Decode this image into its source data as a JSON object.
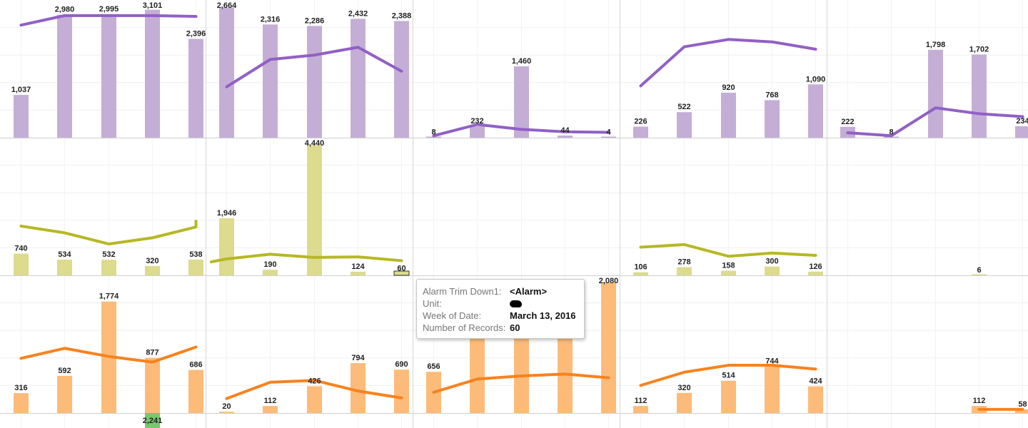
{
  "chart_data": {
    "type": "bar",
    "layout": "3x5 small multiples, bars with line overlay",
    "grid": true,
    "colors": {
      "purple_bar": "#c4aed6",
      "purple_line": "#9160c4",
      "olive_bar": "#dcdb8e",
      "olive_line": "#b6b824",
      "orange_bar": "#fdbb79",
      "orange_line": "#f8821e",
      "highlight_bar": "#78c86e"
    },
    "panels": [
      {
        "row": 0,
        "col": 0,
        "color": "purple",
        "ylim": [
          0,
          3200
        ],
        "bars": [
          {
            "v": 1037,
            "l": "1,037"
          },
          {
            "v": 2980,
            "l": "2,980"
          },
          {
            "v": 2995,
            "l": "2,995"
          },
          {
            "v": 3101,
            "l": "3,101"
          },
          {
            "v": 2396,
            "l": "2,396"
          }
        ],
        "line": [
          2730,
          2960,
          2960,
          2960,
          2940
        ]
      },
      {
        "row": 0,
        "col": 1,
        "color": "purple",
        "ylim": [
          0,
          2700
        ],
        "bars": [
          {
            "v": 2664,
            "l": "2,664"
          },
          {
            "v": 2316,
            "l": "2,316"
          },
          {
            "v": 2286,
            "l": "2,286"
          },
          {
            "v": 2432,
            "l": "2,432"
          },
          {
            "v": 2388,
            "l": "2,388"
          }
        ],
        "line": [
          1040,
          1600,
          1690,
          1850,
          1360
        ]
      },
      {
        "row": 0,
        "col": 2,
        "color": "purple",
        "ylim": [
          0,
          2700
        ],
        "bars": [
          {
            "v": 8,
            "l": "8"
          },
          {
            "v": 232,
            "l": "232"
          },
          {
            "v": 1460,
            "l": "1,460"
          },
          {
            "v": 44,
            "l": "44"
          },
          {
            "v": 4,
            "l": "4"
          }
        ],
        "line": [
          40,
          270,
          170,
          120,
          110
        ]
      },
      {
        "row": 0,
        "col": 3,
        "color": "purple",
        "ylim": [
          0,
          2700
        ],
        "bars": [
          {
            "v": 226,
            "l": "226"
          },
          {
            "v": 522,
            "l": "522"
          },
          {
            "v": 920,
            "l": "920"
          },
          {
            "v": 768,
            "l": "768"
          },
          {
            "v": 1090,
            "l": "1,090"
          }
        ],
        "line": [
          1060,
          1860,
          2010,
          1960,
          1810
        ]
      },
      {
        "row": 0,
        "col": 4,
        "color": "purple",
        "ylim": [
          0,
          2700
        ],
        "bars": [
          {
            "v": 222,
            "l": "222"
          },
          {
            "v": 8,
            "l": "8"
          },
          {
            "v": 1798,
            "l": "1,798"
          },
          {
            "v": 1702,
            "l": "1,702"
          },
          {
            "v": 234,
            "l": "234"
          }
        ],
        "line": [
          100,
          40,
          610,
          490,
          430
        ]
      },
      {
        "row": 1,
        "col": 0,
        "color": "olive",
        "ylim": [
          0,
          4500
        ],
        "bars": [
          {
            "v": 740,
            "l": "740"
          },
          {
            "v": 534,
            "l": "534"
          },
          {
            "v": 532,
            "l": "532"
          },
          {
            "v": 320,
            "l": "320"
          },
          {
            "v": 538,
            "l": "538"
          }
        ],
        "line": [
          1680,
          1450,
          1070,
          1280,
          1650
        ],
        "line_end": 1850
      },
      {
        "row": 1,
        "col": 1,
        "color": "olive",
        "ylim": [
          0,
          4500
        ],
        "bars": [
          {
            "v": 1946,
            "l": "1,946"
          },
          {
            "v": 190,
            "l": "190"
          },
          {
            "v": 4440,
            "l": "4,440"
          },
          {
            "v": 124,
            "l": "124"
          },
          {
            "v": 60,
            "l": "60",
            "outline": true
          }
        ],
        "line": [
          560,
          720,
          610,
          630,
          500
        ],
        "line_start": 460
      },
      {
        "row": 1,
        "col": 2,
        "color": "olive",
        "ylim": [
          0,
          4500
        ],
        "bars": [],
        "line": []
      },
      {
        "row": 1,
        "col": 3,
        "color": "olive",
        "ylim": [
          0,
          4500
        ],
        "bars": [
          {
            "v": 106,
            "l": "106"
          },
          {
            "v": 278,
            "l": "278"
          },
          {
            "v": 158,
            "l": "158"
          },
          {
            "v": 300,
            "l": "300"
          },
          {
            "v": 126,
            "l": "126"
          }
        ],
        "line": [
          960,
          1050,
          650,
          760,
          680
        ]
      },
      {
        "row": 1,
        "col": 4,
        "color": "olive",
        "ylim": [
          0,
          4500
        ],
        "bars": [
          null,
          null,
          null,
          {
            "v": 6,
            "l": "6"
          },
          null
        ],
        "line": []
      },
      {
        "row": 2,
        "col": 0,
        "color": "orange",
        "ylim": [
          0,
          2100
        ],
        "bars": [
          {
            "v": 316,
            "l": "316"
          },
          {
            "v": 592,
            "l": "592"
          },
          {
            "v": 1774,
            "l": "1,774"
          },
          {
            "v": 877,
            "l": "877"
          },
          {
            "v": 686,
            "l": "686"
          }
        ],
        "line": [
          870,
          1030,
          900,
          810,
          1050
        ],
        "below": {
          "index": 3,
          "v": 2241,
          "l": "2,241"
        }
      },
      {
        "row": 2,
        "col": 1,
        "color": "orange",
        "ylim": [
          0,
          2100
        ],
        "bars": [
          {
            "v": 20,
            "l": "20"
          },
          {
            "v": 112,
            "l": "112"
          },
          {
            "v": 426,
            "l": "426"
          },
          {
            "v": 794,
            "l": "794"
          },
          {
            "v": 690,
            "l": "690"
          }
        ],
        "line": [
          230,
          490,
          520,
          350,
          240
        ]
      },
      {
        "row": 2,
        "col": 2,
        "color": "orange",
        "ylim": [
          0,
          2100
        ],
        "bars": [
          {
            "v": 656,
            "l": "656"
          },
          {
            "v": 2080,
            "l": "hidden"
          },
          {
            "v": 2080,
            "l": "hidden"
          },
          {
            "v": 2080,
            "l": "hidden"
          },
          {
            "v": 2080,
            "l": "2,080"
          }
        ],
        "line": [
          330,
          540,
          590,
          620,
          560
        ]
      },
      {
        "row": 2,
        "col": 3,
        "color": "orange",
        "ylim": [
          0,
          2100
        ],
        "bars": [
          {
            "v": 112,
            "l": "112"
          },
          {
            "v": 320,
            "l": "320"
          },
          {
            "v": 514,
            "l": "514"
          },
          {
            "v": 744,
            "l": "744"
          },
          {
            "v": 424,
            "l": "424"
          }
        ],
        "line": [
          440,
          650,
          760,
          760,
          700
        ]
      },
      {
        "row": 2,
        "col": 4,
        "color": "orange",
        "ylim": [
          0,
          2100
        ],
        "bars": [
          null,
          null,
          null,
          {
            "v": 112,
            "l": "112"
          },
          {
            "v": 58,
            "l": "58"
          }
        ],
        "line": [
          null,
          null,
          null,
          58,
          58
        ]
      }
    ]
  },
  "tooltip": {
    "rows": [
      {
        "key": "Alarm Trim Down1:",
        "value": "<Alarm>"
      },
      {
        "key": "Unit:",
        "value": ""
      },
      {
        "key": "Week of Date:",
        "value": "March 13, 2016"
      },
      {
        "key": "Number of Records:",
        "value": "60"
      }
    ]
  }
}
